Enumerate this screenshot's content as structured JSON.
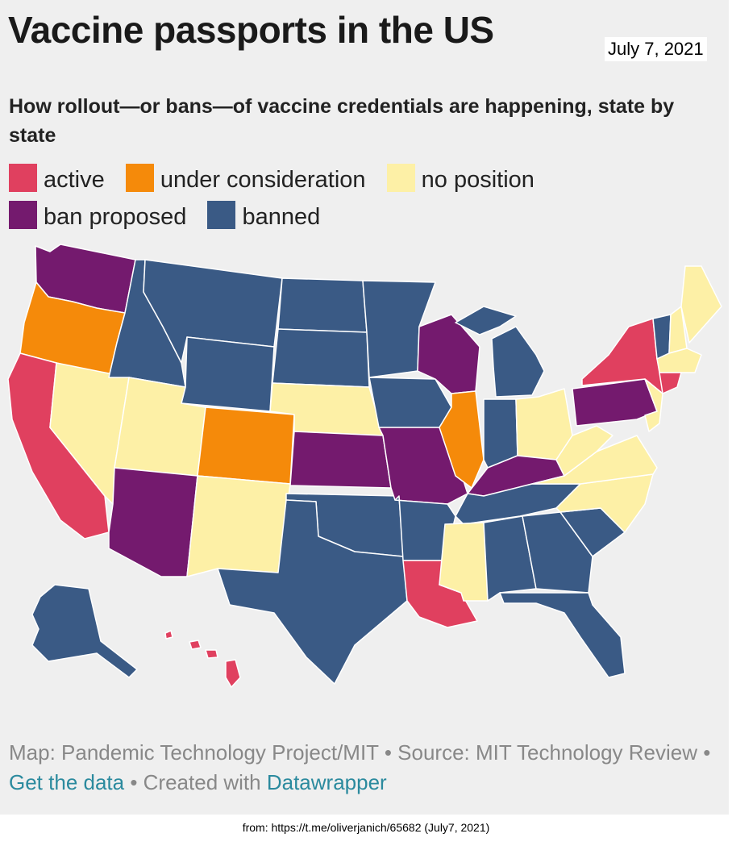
{
  "title": "Vaccine passports in the US",
  "date": "July 7, 2021",
  "subtitle": "How rollout—or bans—of vaccine credentials are happening, state by state",
  "legend": [
    {
      "label": "active",
      "color": "#e0405f"
    },
    {
      "label": "under consideration",
      "color": "#f58a0a"
    },
    {
      "label": "no position",
      "color": "#fdf0a6"
    },
    {
      "label": "ban proposed",
      "color": "#741a6e"
    },
    {
      "label": "banned",
      "color": "#3a5a85"
    }
  ],
  "colors": {
    "active": "#e0405f",
    "under_consideration": "#f58a0a",
    "no_position": "#fdf0a6",
    "ban_proposed": "#741a6e",
    "banned": "#3a5a85",
    "background": "#efefef",
    "link": "#2b8a9e"
  },
  "states": [
    {
      "state": "Washington",
      "status": "ban_proposed"
    },
    {
      "state": "Oregon",
      "status": "under_consideration"
    },
    {
      "state": "California",
      "status": "active"
    },
    {
      "state": "Nevada",
      "status": "no_position"
    },
    {
      "state": "Idaho",
      "status": "banned"
    },
    {
      "state": "Montana",
      "status": "banned"
    },
    {
      "state": "Wyoming",
      "status": "banned"
    },
    {
      "state": "Utah",
      "status": "no_position"
    },
    {
      "state": "Arizona",
      "status": "ban_proposed"
    },
    {
      "state": "Colorado",
      "status": "under_consideration"
    },
    {
      "state": "New Mexico",
      "status": "no_position"
    },
    {
      "state": "North Dakota",
      "status": "banned"
    },
    {
      "state": "South Dakota",
      "status": "banned"
    },
    {
      "state": "Nebraska",
      "status": "no_position"
    },
    {
      "state": "Kansas",
      "status": "ban_proposed"
    },
    {
      "state": "Oklahoma",
      "status": "banned"
    },
    {
      "state": "Texas",
      "status": "banned"
    },
    {
      "state": "Minnesota",
      "status": "banned"
    },
    {
      "state": "Iowa",
      "status": "banned"
    },
    {
      "state": "Missouri",
      "status": "ban_proposed"
    },
    {
      "state": "Arkansas",
      "status": "banned"
    },
    {
      "state": "Louisiana",
      "status": "active"
    },
    {
      "state": "Wisconsin",
      "status": "ban_proposed"
    },
    {
      "state": "Illinois",
      "status": "under_consideration"
    },
    {
      "state": "Michigan",
      "status": "banned"
    },
    {
      "state": "Indiana",
      "status": "banned"
    },
    {
      "state": "Ohio",
      "status": "no_position"
    },
    {
      "state": "Kentucky",
      "status": "ban_proposed"
    },
    {
      "state": "Tennessee",
      "status": "banned"
    },
    {
      "state": "Mississippi",
      "status": "no_position"
    },
    {
      "state": "Alabama",
      "status": "banned"
    },
    {
      "state": "Georgia",
      "status": "banned"
    },
    {
      "state": "Florida",
      "status": "banned"
    },
    {
      "state": "South Carolina",
      "status": "banned"
    },
    {
      "state": "North Carolina",
      "status": "no_position"
    },
    {
      "state": "Virginia",
      "status": "no_position"
    },
    {
      "state": "West Virginia",
      "status": "no_position"
    },
    {
      "state": "Pennsylvania",
      "status": "ban_proposed"
    },
    {
      "state": "New York",
      "status": "active"
    },
    {
      "state": "Vermont",
      "status": "banned"
    },
    {
      "state": "New Hampshire",
      "status": "no_position"
    },
    {
      "state": "Maine",
      "status": "no_position"
    },
    {
      "state": "Massachusetts",
      "status": "no_position"
    },
    {
      "state": "New Jersey",
      "status": "no_position"
    },
    {
      "state": "Connecticut",
      "status": "active"
    },
    {
      "state": "Alaska",
      "status": "banned"
    },
    {
      "state": "Hawaii",
      "status": "active"
    }
  ],
  "credit": {
    "prefix": "Map: Pandemic Technology Project/MIT • Source: MIT Technology Review • ",
    "get_data": "Get the data",
    "middle": " • Created with ",
    "datawrapper": "Datawrapper"
  },
  "source_note": "from: https://t.me/oliverjanich/65682 (July7, 2021)"
}
